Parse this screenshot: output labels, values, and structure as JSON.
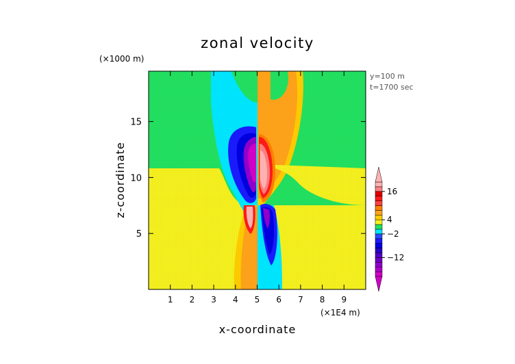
{
  "chart_data": {
    "type": "heatmap",
    "title": "zonal velocity",
    "xlabel": "x-coordinate",
    "ylabel": "z-coordinate",
    "x_scale_label": "(×1E4 m)",
    "y_scale_label": "(×1000 m)",
    "annotations": [
      "y=100 m",
      "t=1700 sec"
    ],
    "xlim": [
      0,
      10
    ],
    "ylim": [
      0,
      19.5
    ],
    "x_ticks": [
      1,
      2,
      3,
      4,
      5,
      6,
      7,
      8,
      9
    ],
    "x_tick_labels": [
      "1",
      "2",
      "3",
      "4",
      "5",
      "6",
      "7",
      "8",
      "9"
    ],
    "y_ticks": [
      5,
      10,
      15
    ],
    "y_tick_labels": [
      "5",
      "10",
      "15"
    ],
    "colorbar": {
      "levels": [
        -20,
        -18,
        -16,
        -14,
        -12,
        -10,
        -8,
        -6,
        -4,
        -2,
        0,
        2,
        4,
        6,
        8,
        10,
        12,
        14,
        16,
        18,
        20
      ],
      "colors": [
        "#d100c8",
        "#b000d0",
        "#9000cc",
        "#7000c8",
        "#5000c8",
        "#2a00cc",
        "#0000e0",
        "#1a1aff",
        "#2a4cff",
        "#00e6ff",
        "#22e060",
        "#f5f01e",
        "#ffcc00",
        "#ffa31a",
        "#ff8000",
        "#ff4040",
        "#ff1a1a",
        "#e00000",
        "#ff7f7f",
        "#ffb3b3"
      ],
      "tick_values": [
        16,
        4,
        -2,
        -12
      ],
      "tick_labels": [
        "16",
        "4",
        "−2",
        "−12"
      ]
    }
  }
}
